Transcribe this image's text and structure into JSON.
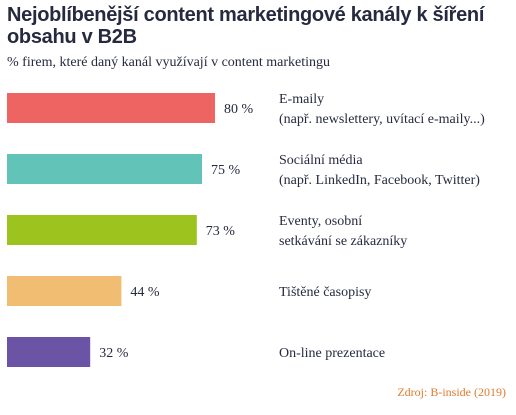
{
  "chart_data": {
    "type": "bar",
    "orientation": "horizontal",
    "title": "Nejoblíbenější content marketingové kanály k šíření obsahu v B2B",
    "subtitle": "% firem, které daný kanál využívají v content marketingu",
    "xlim": [
      0,
      100
    ],
    "grid": false,
    "categories": [
      [
        "E-maily",
        "(např. newslettery, uvítací e-maily...)"
      ],
      [
        "Sociální média",
        "(např. LinkedIn, Facebook, Twitter)"
      ],
      [
        "Eventy, osobní",
        "setkávání se zákazníky"
      ],
      [
        "Tištěné časopisy"
      ],
      [
        "On-line prezentace"
      ]
    ],
    "values": [
      80,
      75,
      73,
      44,
      32
    ],
    "value_labels": [
      "80 %",
      "75 %",
      "73 %",
      "44 %",
      "32 %"
    ],
    "colors": [
      "#ed6463",
      "#62c3b8",
      "#9dc31f",
      "#f0bd72",
      "#6b53a5"
    ]
  },
  "source": "Zdroj: B-inside (2019)"
}
